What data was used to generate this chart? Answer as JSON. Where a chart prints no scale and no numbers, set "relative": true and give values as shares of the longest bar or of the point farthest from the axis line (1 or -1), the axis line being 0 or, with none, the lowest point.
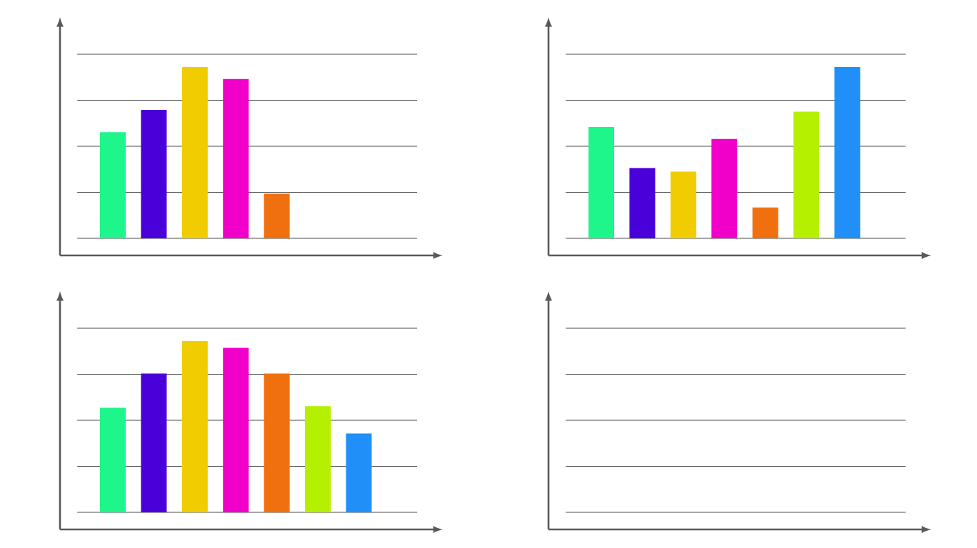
{
  "chart_data": [
    {
      "type": "bar",
      "relative": true,
      "grid": true,
      "categories": [
        null,
        null,
        null,
        null,
        null
      ],
      "values": [
        0.62,
        0.75,
        1,
        0.93,
        0.26
      ],
      "colors": [
        "#1ef58a",
        "#4a00d8",
        "#f0cc00",
        "#f000c8",
        "#f07010"
      ]
    },
    {
      "type": "bar",
      "relative": true,
      "grid": true,
      "categories": [
        null,
        null,
        null,
        null,
        null,
        null,
        null
      ],
      "values": [
        0.65,
        0.41,
        0.39,
        0.58,
        0.18,
        0.74,
        1
      ],
      "colors": [
        "#1ef58a",
        "#4a00d8",
        "#f0cc00",
        "#f000c8",
        "#f07010",
        "#b4f000",
        "#2090f8"
      ]
    },
    {
      "type": "bar",
      "relative": true,
      "grid": true,
      "categories": [
        null,
        null,
        null,
        null,
        null,
        null,
        null
      ],
      "values": [
        0.61,
        0.81,
        1,
        0.96,
        0.81,
        0.62,
        0.46
      ],
      "colors": [
        "#1ef58a",
        "#4a00d8",
        "#f0cc00",
        "#f000c8",
        "#f07010",
        "#b4f000",
        "#2090f8"
      ]
    },
    {
      "type": "other"
    }
  ]
}
